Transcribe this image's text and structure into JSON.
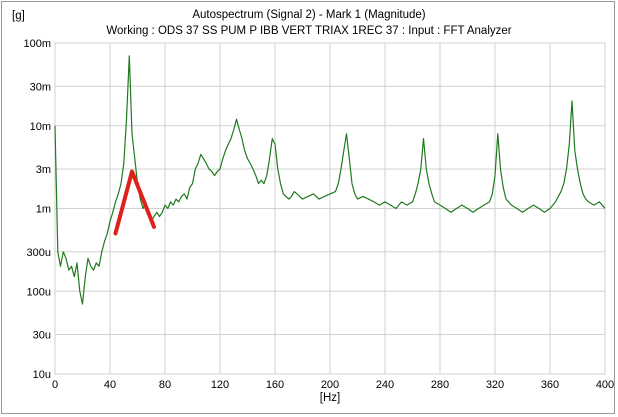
{
  "chart_data": {
    "type": "line",
    "title": "Autospectrum (Signal 2) - Mark 1 (Magnitude)",
    "subtitle": "Working : ODS 37 SS PUM P IBB VERT TRIAX 1REC 37 : Input : FFT Analyzer",
    "ylabel_unit": "[g]",
    "xlabel": "[Hz]",
    "xlim": [
      0,
      400
    ],
    "ylim": [
      0.01,
      0.1
    ],
    "y_scale": "log",
    "grid": true,
    "x_ticks": [
      0,
      40,
      80,
      120,
      160,
      200,
      240,
      280,
      320,
      360,
      400
    ],
    "x_tick_labels": [
      "0",
      "40",
      "80",
      "120",
      "160",
      "200",
      "240",
      "280",
      "320",
      "360",
      "400"
    ],
    "y_ticks": [
      1e-05,
      3e-05,
      0.0001,
      0.0003,
      0.001,
      0.003,
      0.01,
      0.03,
      0.1
    ],
    "y_tick_labels": [
      "10u",
      "30u",
      "100u",
      "300u",
      "1m",
      "3m",
      "10m",
      "30m",
      "100m"
    ],
    "series": [
      {
        "color": "#1f7a1f",
        "x": [
          0,
          2,
          4,
          6,
          8,
          10,
          12,
          14,
          16,
          18,
          20,
          22,
          24,
          26,
          28,
          30,
          32,
          34,
          36,
          38,
          40,
          42,
          44,
          46,
          48,
          50,
          52,
          54,
          56,
          58,
          60,
          62,
          64,
          66,
          68,
          70,
          72,
          74,
          76,
          78,
          80,
          82,
          84,
          86,
          88,
          90,
          92,
          94,
          96,
          98,
          100,
          102,
          104,
          106,
          108,
          110,
          112,
          114,
          116,
          118,
          120,
          122,
          124,
          126,
          128,
          130,
          132,
          134,
          136,
          138,
          140,
          142,
          144,
          146,
          148,
          150,
          152,
          154,
          156,
          158,
          160,
          162,
          164,
          166,
          168,
          170,
          172,
          174,
          176,
          178,
          180,
          184,
          188,
          192,
          196,
          200,
          204,
          206,
          208,
          210,
          212,
          214,
          216,
          218,
          220,
          224,
          228,
          232,
          236,
          240,
          244,
          248,
          252,
          256,
          260,
          262,
          264,
          266,
          268,
          270,
          272,
          274,
          276,
          280,
          284,
          288,
          292,
          296,
          300,
          304,
          308,
          312,
          316,
          318,
          320,
          322,
          324,
          326,
          328,
          332,
          336,
          340,
          344,
          348,
          352,
          356,
          360,
          364,
          366,
          368,
          370,
          372,
          374,
          376,
          378,
          380,
          382,
          384,
          386,
          388,
          392,
          396,
          400
        ],
        "y": [
          0.01,
          0.0003,
          0.0002,
          0.0003,
          0.00025,
          0.00018,
          0.0002,
          0.00015,
          0.00022,
          0.0001,
          7e-05,
          0.00015,
          0.00025,
          0.0002,
          0.00018,
          0.00022,
          0.0002,
          0.0003,
          0.0004,
          0.0005,
          0.0007,
          0.0009,
          0.0012,
          0.0015,
          0.002,
          0.0035,
          0.012,
          0.07,
          0.008,
          0.004,
          0.002,
          0.0013,
          0.001,
          0.0012,
          0.0009,
          0.0007,
          0.0008,
          0.0009,
          0.0008,
          0.0009,
          0.0011,
          0.001,
          0.0012,
          0.0011,
          0.0013,
          0.0012,
          0.0014,
          0.0015,
          0.0013,
          0.0018,
          0.002,
          0.003,
          0.0035,
          0.0045,
          0.004,
          0.0035,
          0.003,
          0.0028,
          0.0025,
          0.0028,
          0.003,
          0.004,
          0.005,
          0.006,
          0.007,
          0.009,
          0.012,
          0.009,
          0.007,
          0.005,
          0.004,
          0.0035,
          0.003,
          0.0025,
          0.002,
          0.0022,
          0.002,
          0.0025,
          0.004,
          0.007,
          0.006,
          0.003,
          0.002,
          0.0015,
          0.0014,
          0.0013,
          0.0014,
          0.0016,
          0.0015,
          0.0014,
          0.0013,
          0.0014,
          0.0015,
          0.0013,
          0.0014,
          0.0015,
          0.0016,
          0.002,
          0.003,
          0.005,
          0.008,
          0.004,
          0.002,
          0.0015,
          0.0013,
          0.0014,
          0.0013,
          0.0012,
          0.0011,
          0.0012,
          0.0011,
          0.001,
          0.0012,
          0.0011,
          0.0012,
          0.0015,
          0.002,
          0.003,
          0.007,
          0.003,
          0.002,
          0.0015,
          0.0012,
          0.0011,
          0.001,
          0.0009,
          0.001,
          0.0011,
          0.001,
          0.0009,
          0.001,
          0.0011,
          0.0012,
          0.0015,
          0.0025,
          0.008,
          0.003,
          0.0018,
          0.0013,
          0.0011,
          0.001,
          0.0009,
          0.001,
          0.0011,
          0.001,
          0.0009,
          0.001,
          0.0012,
          0.0014,
          0.0016,
          0.002,
          0.003,
          0.006,
          0.02,
          0.005,
          0.003,
          0.002,
          0.0015,
          0.0013,
          0.0012,
          0.0011,
          0.0012,
          0.001
        ]
      }
    ],
    "annotation": {
      "color": "#e0201a",
      "x": [
        44,
        56,
        72
      ],
      "y": [
        0.0005,
        0.0028,
        0.0006
      ]
    }
  }
}
